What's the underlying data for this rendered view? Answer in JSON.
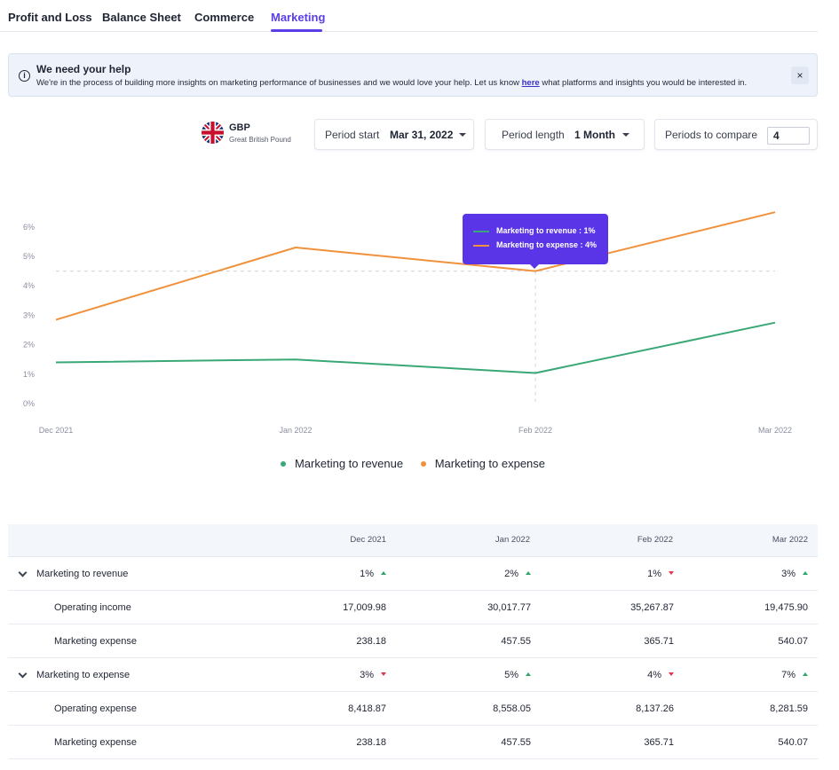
{
  "tabs": [
    {
      "label": "Profit and Loss",
      "active": false
    },
    {
      "label": "Balance Sheet",
      "active": false
    },
    {
      "label": "Commerce",
      "active": false
    },
    {
      "label": "Marketing",
      "active": true
    }
  ],
  "banner": {
    "title": "We need your help",
    "text_before": "We're in the process of building more insights on marketing performance of businesses and we would love your help. Let us know ",
    "link": "here",
    "text_after": " what platforms and insights you would be interested in.",
    "close_icon": "×"
  },
  "currency": {
    "code": "GBP",
    "name": "Great British Pound",
    "flag_icon": "uk-flag-icon"
  },
  "controls": {
    "period_start_label": "Period start",
    "period_start_value": "Mar 31, 2022",
    "period_length_label": "Period length",
    "period_length_value": "1 Month",
    "compare_label": "Periods to compare",
    "compare_value": "4"
  },
  "tooltip": {
    "revenue": "Marketing to revenue : 1%",
    "expense": "Marketing to expense : 4%"
  },
  "legend": {
    "revenue": "Marketing to revenue",
    "expense": "Marketing to expense"
  },
  "colors": {
    "accent": "#5b3ee8",
    "revenue_line": "#3aa876",
    "expense_line": "#f0913b",
    "up": "#2ea56b",
    "down": "#e5344d"
  },
  "chart_data": {
    "type": "line",
    "x": [
      "Dec 2021",
      "Jan 2022",
      "Feb 2022",
      "Mar 2022"
    ],
    "yticks": [
      "0%",
      "1%",
      "2%",
      "3%",
      "4%",
      "5%",
      "6%"
    ],
    "ylim": [
      0,
      6
    ],
    "series": [
      {
        "name": "Marketing to revenue",
        "values": [
          1.4,
          1.5,
          1.04,
          2.75
        ]
      },
      {
        "name": "Marketing to expense",
        "values": [
          2.85,
          5.3,
          4.5,
          6.5
        ]
      }
    ],
    "highlight_index": 2,
    "grid": false
  },
  "table": {
    "columns": [
      "Dec 2021",
      "Jan 2022",
      "Feb 2022",
      "Mar 2022"
    ],
    "rows": [
      {
        "name": "Marketing to revenue",
        "group": true,
        "values": [
          "1%",
          "2%",
          "1%",
          "3%"
        ],
        "trend": [
          "up",
          "up",
          "down",
          "up"
        ]
      },
      {
        "name": "Operating income",
        "group": false,
        "values": [
          "17,009.98",
          "30,017.77",
          "35,267.87",
          "19,475.90"
        ]
      },
      {
        "name": "Marketing expense",
        "group": false,
        "values": [
          "238.18",
          "457.55",
          "365.71",
          "540.07"
        ]
      },
      {
        "name": "Marketing to expense",
        "group": true,
        "values": [
          "3%",
          "5%",
          "4%",
          "7%"
        ],
        "trend": [
          "down",
          "up",
          "down",
          "up"
        ]
      },
      {
        "name": "Operating expense",
        "group": false,
        "values": [
          "8,418.87",
          "8,558.05",
          "8,137.26",
          "8,281.59"
        ]
      },
      {
        "name": "Marketing expense",
        "group": false,
        "values": [
          "238.18",
          "457.55",
          "365.71",
          "540.07"
        ]
      }
    ]
  }
}
